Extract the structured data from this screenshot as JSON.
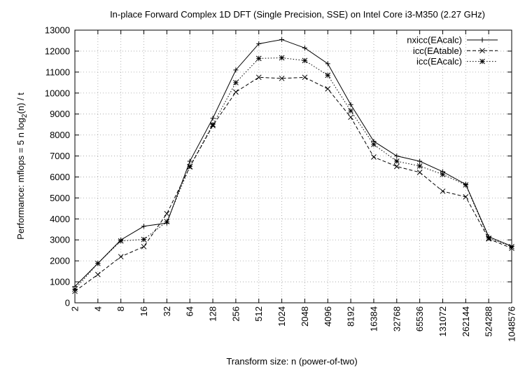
{
  "chart_data": {
    "type": "line",
    "title": "In-place Forward Complex 1D DFT (Single Precision, SSE) on Intel Core i3-M350 (2.27 GHz)",
    "xlabel": "Transform size: n (power-of-two)",
    "ylabel": "Performance: mflops = 5 n log2(n) / t",
    "ylabel_parts": {
      "prefix": "Performance: mflops = 5 n log",
      "subscript": "2",
      "suffix": "(n) / t"
    },
    "ylim": [
      0,
      13000
    ],
    "x_scale": "log2",
    "grid": true,
    "legend_position": "top-right",
    "categories": [
      "2",
      "4",
      "8",
      "16",
      "32",
      "64",
      "128",
      "256",
      "512",
      "1024",
      "2048",
      "4096",
      "8192",
      "16384",
      "32768",
      "65536",
      "131072",
      "262144",
      "524288",
      "1048576"
    ],
    "yticks": [
      "0",
      "1000",
      "2000",
      "3000",
      "4000",
      "5000",
      "6000",
      "7000",
      "8000",
      "9000",
      "10000",
      "11000",
      "12000",
      "13000"
    ],
    "series": [
      {
        "name": "nxicc(EAcalc)",
        "line": "solid",
        "marker": "plus",
        "values": [
          780,
          1880,
          3000,
          3650,
          3800,
          6750,
          8800,
          11100,
          12350,
          12550,
          12150,
          11400,
          9450,
          7700,
          7000,
          6750,
          6250,
          5650,
          3150,
          2700
        ]
      },
      {
        "name": "icc(EAtable)",
        "line": "dashed",
        "marker": "cross",
        "values": [
          550,
          1350,
          2200,
          2680,
          4250,
          6480,
          8450,
          10050,
          10750,
          10700,
          10750,
          10200,
          8850,
          6950,
          6500,
          6220,
          5320,
          5050,
          3050,
          2600
        ]
      },
      {
        "name": "icc(EAcalc)",
        "line": "dotted",
        "marker": "asterisk",
        "values": [
          650,
          1880,
          2950,
          3020,
          3870,
          6500,
          8500,
          10500,
          11650,
          11680,
          11550,
          10850,
          9150,
          7550,
          6750,
          6520,
          6120,
          5620,
          3080,
          2680
        ]
      }
    ]
  }
}
